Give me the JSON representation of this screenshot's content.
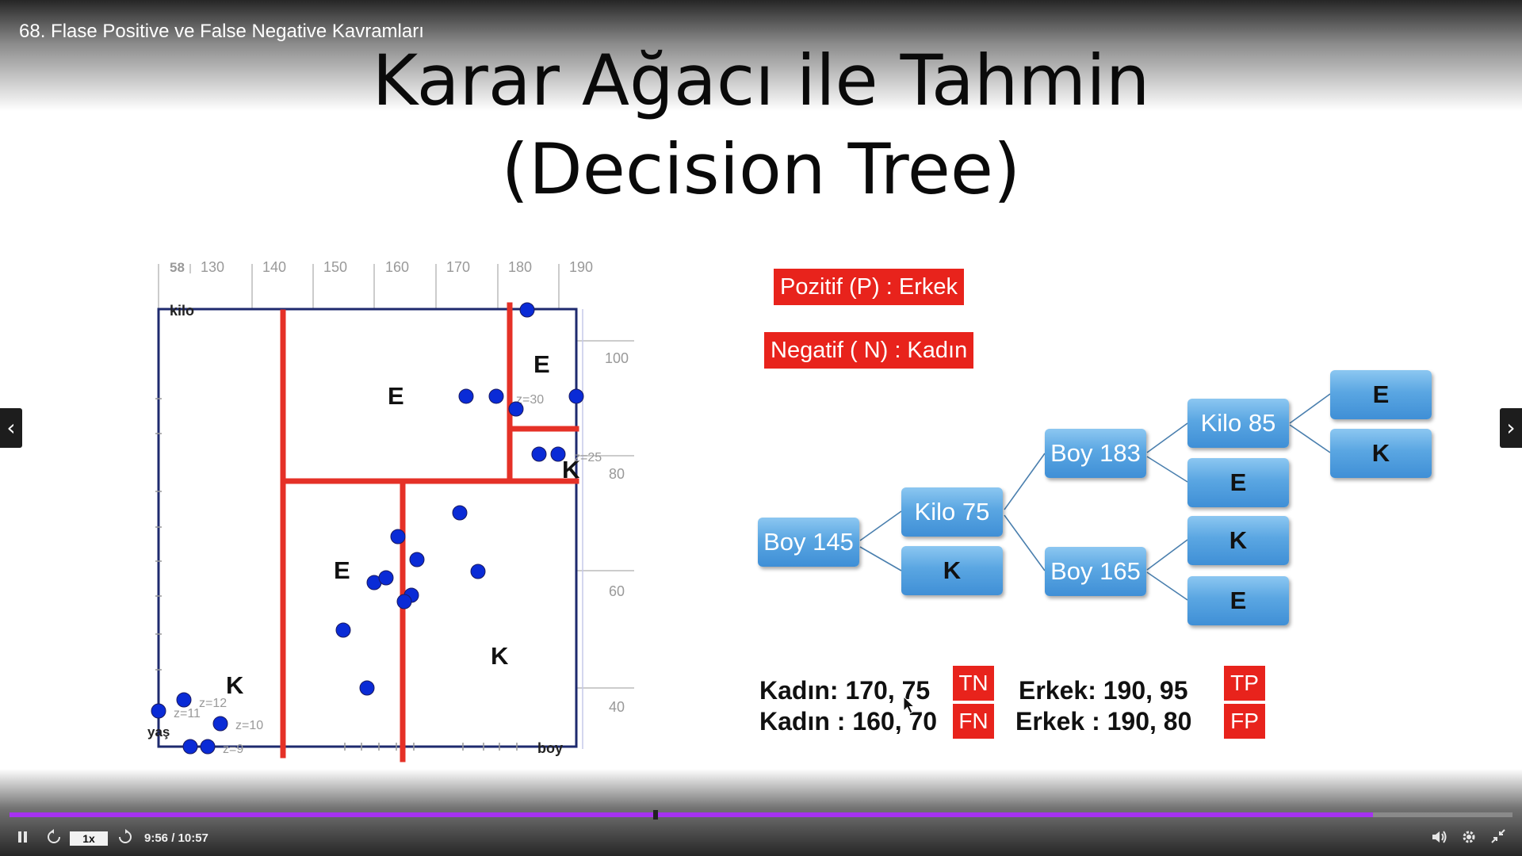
{
  "video": {
    "title": "68. Flase Positive ve False Negative Kavramları"
  },
  "slide": {
    "title_line1": "Karar Ağacı ile Tahmin",
    "title_line2": "(Decision Tree)"
  },
  "scatter": {
    "x_axis_label": "boy",
    "y_axis_label": "kilo",
    "corner_label": "yaş",
    "x_ticks": [
      "58",
      "130",
      "140",
      "150",
      "160",
      "170",
      "180",
      "190"
    ],
    "y_ticks": [
      "100",
      "80",
      "60",
      "40"
    ],
    "region_labels": [
      "E",
      "E",
      "K",
      "E",
      "K",
      "K"
    ],
    "z_annotations": [
      "z=30",
      "z=25",
      "z=12",
      "z=11",
      "z=10",
      "z=9"
    ]
  },
  "legend": {
    "positive": "Pozitif (P) : Erkek",
    "negative": "Negatif ( N) : Kadın"
  },
  "tree": {
    "root": "Boy  145",
    "kilo75": "Kilo 75",
    "root_leaf": "K",
    "boy183": "Boy 183",
    "boy165": "Boy 165",
    "kilo85": "Kilo 85",
    "leaf_boy183": "E",
    "leaf_boy165_upper": "K",
    "leaf_boy165_lower": "E",
    "leaf_kilo85_upper": "E",
    "leaf_kilo85_lower": "K"
  },
  "results": {
    "kadin1": "Kadın: 170, 75",
    "kadin2": "Kadın : 160, 70",
    "erkek1": "Erkek: 190, 95",
    "erkek2": "Erkek : 190, 80",
    "tn": "TN",
    "fn": "FN",
    "tp": "TP",
    "fp": "FP"
  },
  "player": {
    "speed": "1x",
    "time": "9:56 / 10:57",
    "progress": 0.907,
    "marker_position": 0.43,
    "accent_color": "#a632f0"
  },
  "colors": {
    "badge_red": "#e8231c",
    "split_red": "#e53127",
    "point_blue": "#0a2bd6",
    "node_blue": "#4a9be0"
  }
}
